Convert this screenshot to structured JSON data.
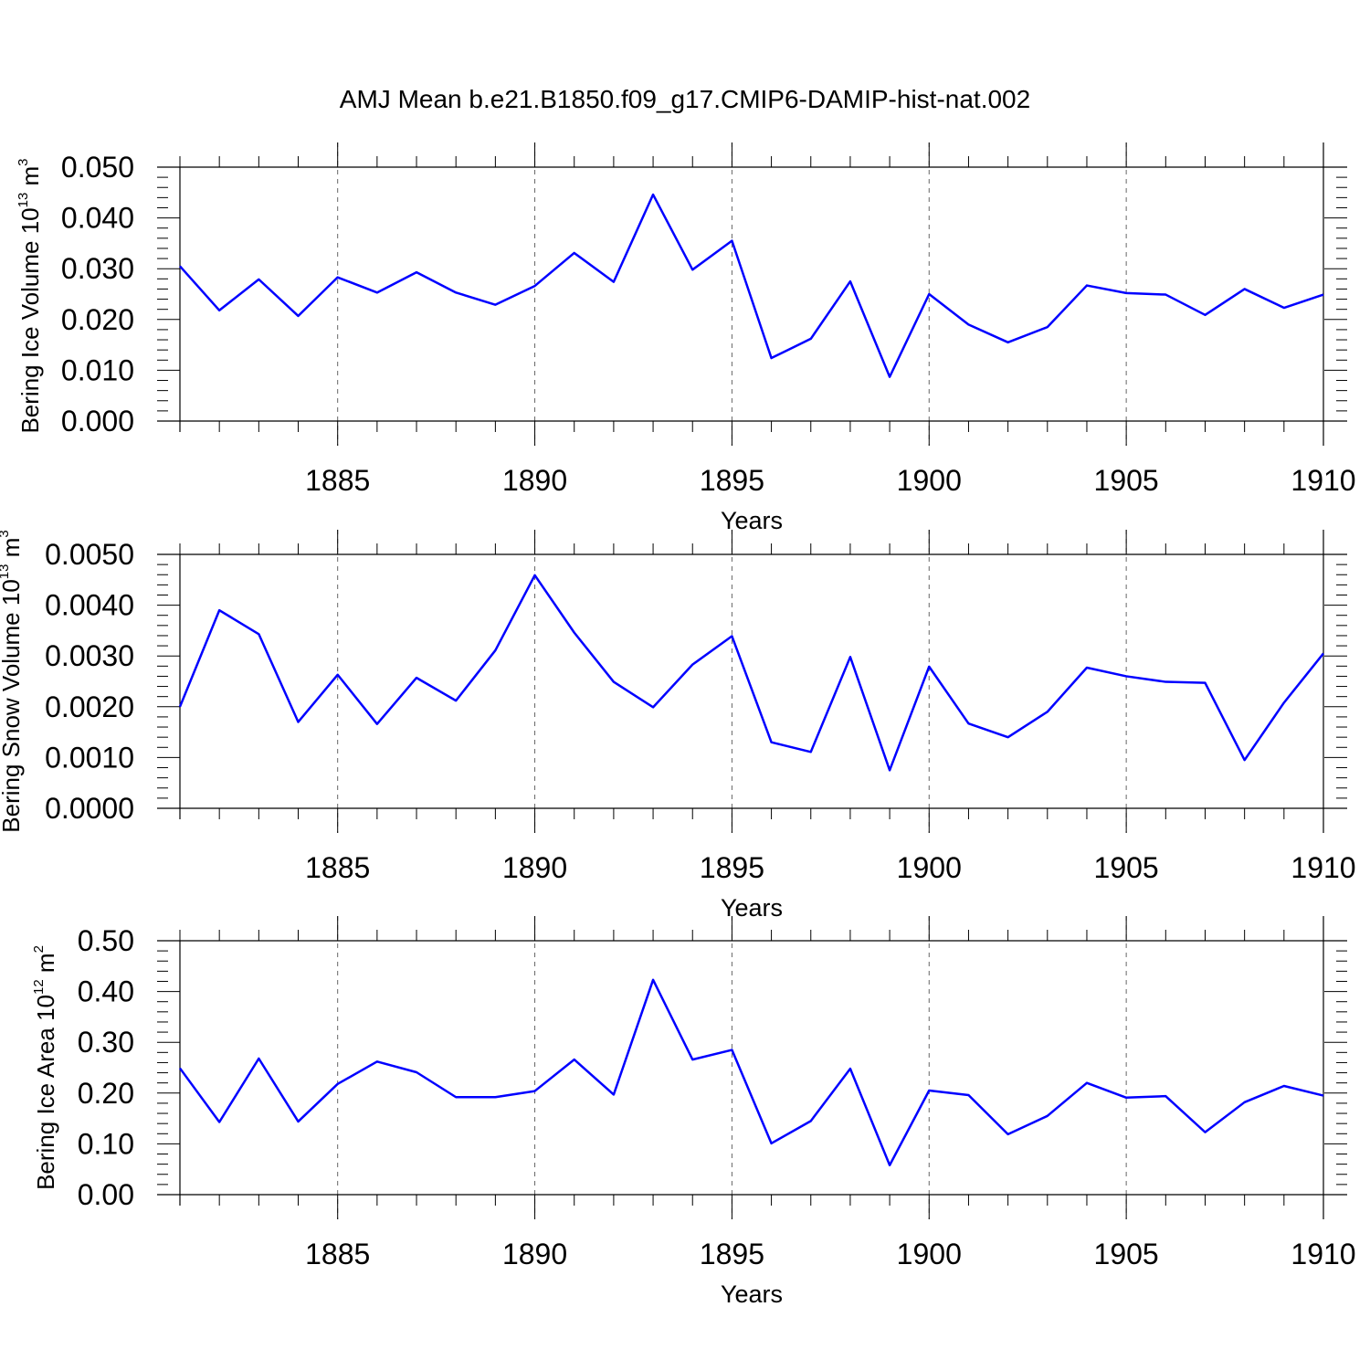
{
  "title": "AMJ Mean b.e21.B1850.f09_g17.CMIP6-DAMIP-hist-nat.002",
  "colors": {
    "series": "#0000ff",
    "grid": "#666666",
    "axis": "#000000"
  },
  "chart_data": [
    {
      "type": "line",
      "ylabel": {
        "text": "Bering Ice Volume 10",
        "sup1": "13",
        "unit": " m",
        "sup2": "3"
      },
      "xlabel": "Years",
      "xlim": [
        1881,
        1910
      ],
      "ylim": [
        0,
        0.05
      ],
      "xticks": [
        1885,
        1890,
        1895,
        1900,
        1905,
        1910
      ],
      "yticks": [
        0,
        0.01,
        0.02,
        0.03,
        0.04,
        0.05
      ],
      "yticklabels": [
        "0.000",
        "0.010",
        "0.020",
        "0.030",
        "0.040",
        "0.050"
      ],
      "grid": "vertical dashed at major x ticks",
      "x": [
        1881,
        1882,
        1883,
        1884,
        1885,
        1886,
        1887,
        1888,
        1889,
        1890,
        1891,
        1892,
        1893,
        1894,
        1895,
        1896,
        1897,
        1898,
        1899,
        1900,
        1901,
        1902,
        1903,
        1904,
        1905,
        1906,
        1907,
        1908,
        1909,
        1910
      ],
      "series": [
        {
          "values": [
            0.0305,
            0.0218,
            0.0279,
            0.0207,
            0.0283,
            0.0253,
            0.0293,
            0.0253,
            0.0229,
            0.0266,
            0.0331,
            0.0274,
            0.0446,
            0.0298,
            0.0355,
            0.0124,
            0.0162,
            0.0275,
            0.0087,
            0.025,
            0.019,
            0.0155,
            0.0185,
            0.0267,
            0.0252,
            0.0249,
            0.0209,
            0.026,
            0.0223,
            0.0249
          ]
        }
      ]
    },
    {
      "type": "line",
      "ylabel": {
        "text": "Bering Snow Volume 10",
        "sup1": "13",
        "unit": " m",
        "sup2": "3"
      },
      "xlabel": "Years",
      "xlim": [
        1881,
        1910
      ],
      "ylim": [
        0,
        0.005
      ],
      "xticks": [
        1885,
        1890,
        1895,
        1900,
        1905,
        1910
      ],
      "yticks": [
        0,
        0.001,
        0.002,
        0.003,
        0.004,
        0.005
      ],
      "yticklabels": [
        "0.0000",
        "0.0010",
        "0.0020",
        "0.0030",
        "0.0040",
        "0.0050"
      ],
      "grid": "vertical dashed at major x ticks",
      "x": [
        1881,
        1882,
        1883,
        1884,
        1885,
        1886,
        1887,
        1888,
        1889,
        1890,
        1891,
        1892,
        1893,
        1894,
        1895,
        1896,
        1897,
        1898,
        1899,
        1900,
        1901,
        1902,
        1903,
        1904,
        1905,
        1906,
        1907,
        1908,
        1909,
        1910
      ],
      "series": [
        {
          "values": [
            0.002,
            0.0039,
            0.00343,
            0.0017,
            0.00263,
            0.00166,
            0.00257,
            0.00212,
            0.00311,
            0.00459,
            0.00346,
            0.00249,
            0.00199,
            0.00283,
            0.00339,
            0.0013,
            0.00111,
            0.00298,
            0.00075,
            0.00279,
            0.00167,
            0.0014,
            0.0019,
            0.00277,
            0.0026,
            0.00249,
            0.00247,
            0.00095,
            0.00208,
            0.00305
          ]
        }
      ]
    },
    {
      "type": "line",
      "ylabel": {
        "text": "Bering Ice Area 10",
        "sup1": "12",
        "unit": " m",
        "sup2": "2"
      },
      "xlabel": "Years",
      "xlim": [
        1881,
        1910
      ],
      "ylim": [
        0,
        0.5
      ],
      "xticks": [
        1885,
        1890,
        1895,
        1900,
        1905,
        1910
      ],
      "yticks": [
        0,
        0.1,
        0.2,
        0.3,
        0.4,
        0.5
      ],
      "yticklabels": [
        "0.00",
        "0.10",
        "0.20",
        "0.30",
        "0.40",
        "0.50"
      ],
      "grid": "vertical dashed at major x ticks",
      "x": [
        1881,
        1882,
        1883,
        1884,
        1885,
        1886,
        1887,
        1888,
        1889,
        1890,
        1891,
        1892,
        1893,
        1894,
        1895,
        1896,
        1897,
        1898,
        1899,
        1900,
        1901,
        1902,
        1903,
        1904,
        1905,
        1906,
        1907,
        1908,
        1909,
        1910
      ],
      "series": [
        {
          "values": [
            0.249,
            0.143,
            0.268,
            0.144,
            0.218,
            0.262,
            0.241,
            0.192,
            0.192,
            0.204,
            0.266,
            0.197,
            0.423,
            0.266,
            0.285,
            0.101,
            0.145,
            0.248,
            0.058,
            0.205,
            0.196,
            0.119,
            0.155,
            0.22,
            0.191,
            0.194,
            0.123,
            0.182,
            0.214,
            0.195
          ]
        }
      ]
    }
  ]
}
